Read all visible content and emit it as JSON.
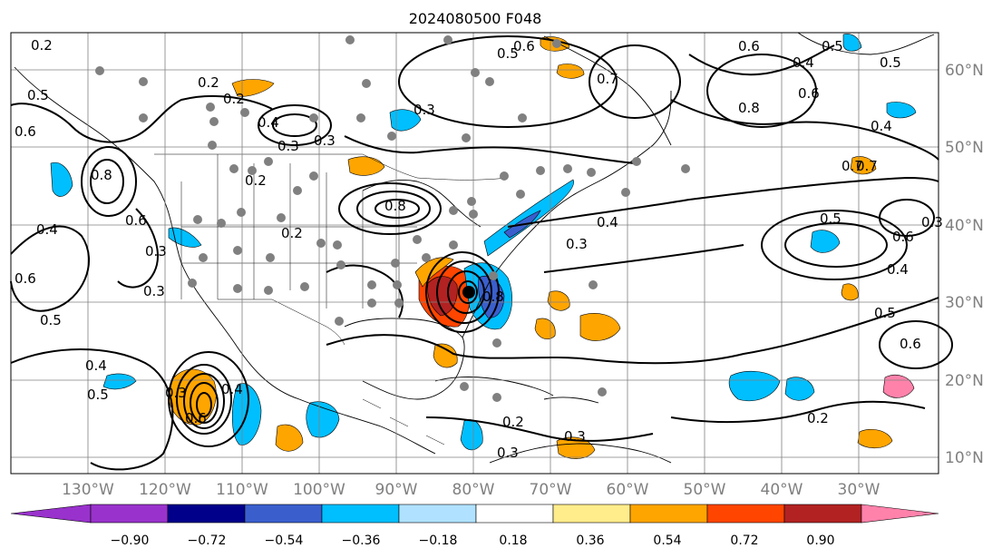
{
  "title": "2024080500 F048",
  "lon_labels": [
    "130°W",
    "120°W",
    "110°W",
    "100°W",
    "90°W",
    "80°W",
    "70°W",
    "60°W",
    "50°W",
    "40°W",
    "30°W"
  ],
  "lat_labels": [
    "60°N",
    "50°N",
    "40°N",
    "30°N",
    "20°N",
    "10°N"
  ],
  "colorbar": {
    "ticks": [
      "−0.90",
      "−0.72",
      "−0.54",
      "−0.36",
      "−0.18",
      "0.18",
      "0.36",
      "0.54",
      "0.72",
      "0.90"
    ],
    "colors": [
      "#9932cc",
      "#00008b",
      "#3a5fcd",
      "#00bfff",
      "#b0e2ff",
      "#ffffff",
      "#ffec8b",
      "#ffa500",
      "#ff4500",
      "#b22222",
      "#ff82ab"
    ]
  },
  "contour_labels": [
    "0.2",
    "0.5",
    "0.6",
    "0.8",
    "0.6",
    "0.4",
    "0.5",
    "0.6",
    "0.8",
    "0.6",
    "0.4",
    "0.5",
    "0.6",
    "0.5",
    "0.7",
    "0.5",
    "0.6",
    "0.7",
    "0.4",
    "0.5",
    "0.6",
    "0.4",
    "0.3",
    "0.3",
    "0.2",
    "0.3",
    "0.3",
    "0.2",
    "0.8",
    "0.8",
    "0.4",
    "0.2",
    "0.3",
    "0.4",
    "0.4",
    "0.3",
    "0.5",
    "0.6",
    "0.5",
    "0.4",
    "0.3",
    "0.6",
    "0.3",
    "0.2",
    "0.3",
    "0.2",
    "0.3",
    "0.2",
    "0.7"
  ],
  "colors": {
    "coast": "#000000",
    "contour": "#000000",
    "station": "#808080",
    "grid": "#808080"
  }
}
